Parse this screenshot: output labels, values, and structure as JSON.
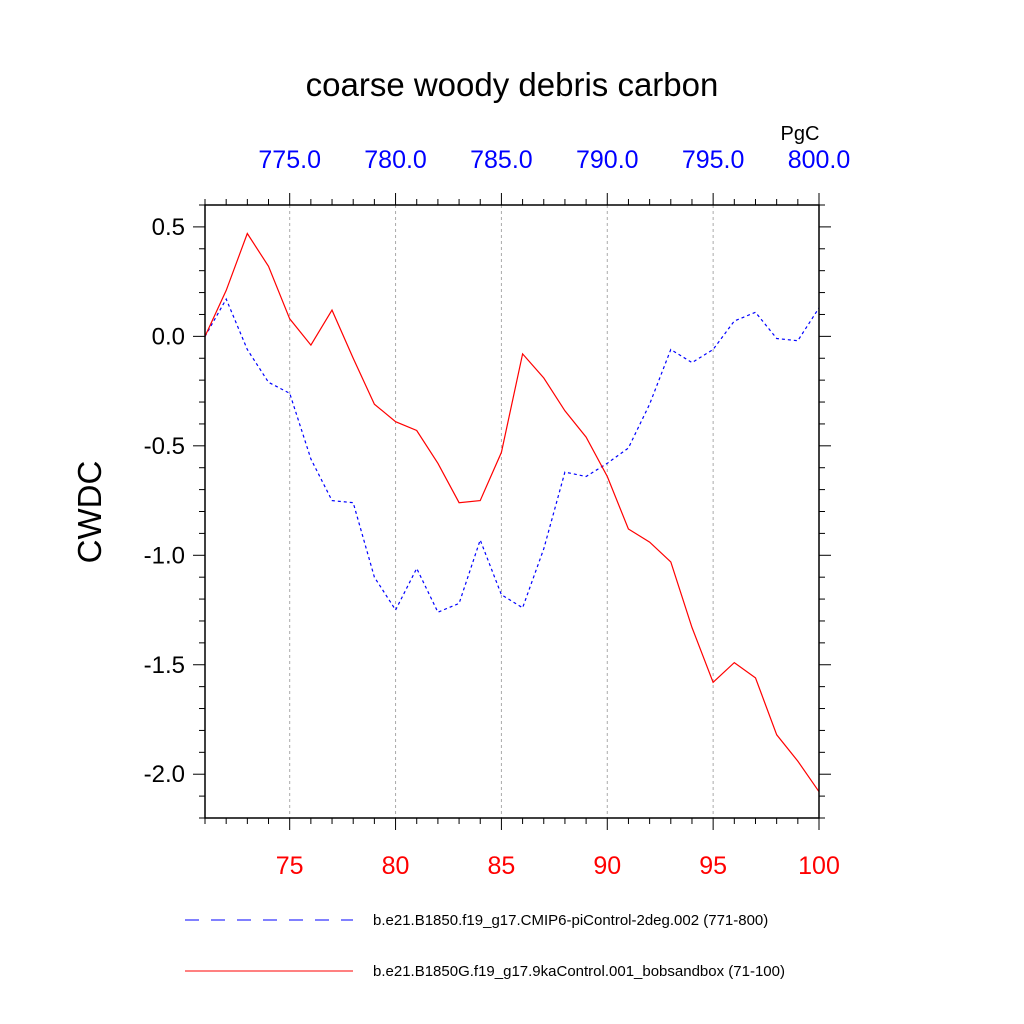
{
  "chart_data": {
    "type": "line",
    "title": "coarse woody debris carbon",
    "ylabel": "CWDC",
    "units": "PgC",
    "ylim": [
      -2.2,
      0.6
    ],
    "yticks": [
      "0.5",
      "0.0",
      "-0.5",
      "-1.0",
      "-1.5",
      "-2.0"
    ],
    "ytick_values": [
      0.5,
      0.0,
      -0.5,
      -1.0,
      -1.5,
      -2.0
    ],
    "x_bottom": {
      "range": [
        71,
        100
      ],
      "ticks": [
        "75",
        "80",
        "85",
        "90",
        "95",
        "100"
      ],
      "tick_values": [
        75,
        80,
        85,
        90,
        95,
        100
      ],
      "color": "#ff0000"
    },
    "x_top": {
      "range": [
        771,
        800
      ],
      "ticks": [
        "775.0",
        "780.0",
        "785.0",
        "790.0",
        "795.0",
        "800.0"
      ],
      "tick_values": [
        775,
        780,
        785,
        790,
        795,
        800
      ],
      "color": "#0000ff"
    },
    "grid": "vertical dashed at major x ticks",
    "legend_position": "bottom",
    "series": [
      {
        "name": "b.e21.B1850.f19_g17.CMIP6-piControl-2deg.002 (771-800)",
        "axis": "top",
        "color": "#0000ff",
        "dash": "dashed",
        "x": [
          771,
          772,
          773,
          774,
          775,
          776,
          777,
          778,
          779,
          780,
          781,
          782,
          783,
          784,
          785,
          786,
          787,
          788,
          789,
          790,
          791,
          792,
          793,
          794,
          795,
          796,
          797,
          798,
          799,
          800
        ],
        "values": [
          0.0,
          0.17,
          -0.06,
          -0.21,
          -0.26,
          -0.56,
          -0.75,
          -0.76,
          -1.1,
          -1.25,
          -1.06,
          -1.26,
          -1.22,
          -0.93,
          -1.18,
          -1.24,
          -0.97,
          -0.62,
          -0.64,
          -0.58,
          -0.51,
          -0.31,
          -0.06,
          -0.12,
          -0.06,
          0.07,
          0.11,
          -0.01,
          -0.02,
          0.13
        ]
      },
      {
        "name": "b.e21.B1850G.f19_g17.9kaControl.001_bobsandbox (71-100)",
        "axis": "bottom",
        "color": "#ff0000",
        "dash": "solid",
        "x": [
          71,
          72,
          73,
          74,
          75,
          76,
          77,
          78,
          79,
          80,
          81,
          82,
          83,
          84,
          85,
          86,
          87,
          88,
          89,
          90,
          91,
          92,
          93,
          94,
          95,
          96,
          97,
          98,
          99,
          100
        ],
        "values": [
          0.0,
          0.21,
          0.47,
          0.32,
          0.08,
          -0.04,
          0.12,
          -0.1,
          -0.31,
          -0.39,
          -0.43,
          -0.58,
          -0.76,
          -0.75,
          -0.53,
          -0.08,
          -0.19,
          -0.34,
          -0.46,
          -0.64,
          -0.88,
          -0.94,
          -1.03,
          -1.33,
          -1.58,
          -1.49,
          -1.56,
          -1.82,
          -1.94,
          -2.08
        ]
      }
    ]
  }
}
